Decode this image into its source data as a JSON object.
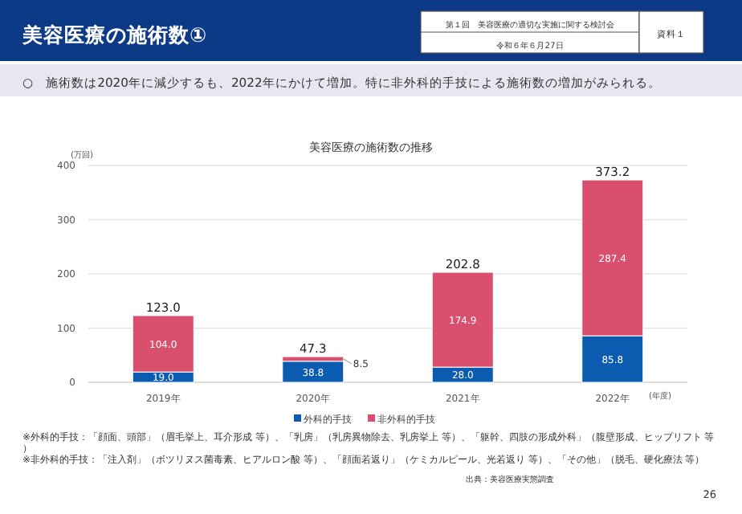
{
  "chart_data": {
    "type": "bar",
    "title": "美容医療の施術数の推移",
    "subtitle": "○　施術数は2020年に減少するも、2022年にかけて増加。特に非外科的手技による施術数の増加がみられる。",
    "ylabel": "(万回)",
    "xlabel": "(年度)",
    "categories": [
      "2019年",
      "2020年",
      "2021年",
      "2022年"
    ],
    "stacked": true,
    "series": [
      {
        "name": "外科的手技",
        "color": "#0b5cb0",
        "values": [
          19.0,
          38.8,
          28.0,
          85.8
        ],
        "value_labels": [
          "19.0",
          "38.8",
          "28.0",
          "85.8"
        ]
      },
      {
        "name": "非外科的手技",
        "color": "#d9506e",
        "values": [
          104.0,
          8.5,
          174.9,
          287.4
        ],
        "value_labels": [
          "104.0",
          "8.5",
          "174.9",
          "287.4"
        ]
      }
    ],
    "totals": [
      "123.0",
      "47.3",
      "202.8",
      "373.2"
    ],
    "ylim": [
      0,
      400
    ],
    "yticks": [
      0,
      100,
      200,
      300,
      400
    ],
    "grid": "y",
    "legend": "bottom",
    "annotations": [
      "美容医療の施術数①",
      "第１回　美容医療の適切な実施に関する検討会",
      "令和６年６月27日",
      "資料１",
      "※外科的手技：「顔面、頭部」（眉毛挙上、耳介形成 等）、「乳房」（乳房異物除去、乳房挙上 等）、「躯幹、四肢の形成外科」（腹壁形成、ヒップリフト 等）",
      "※非外科的手技：「注入剤」（ボツリヌス菌毒素、ヒアルロン酸 等）、「顔面若返り」（ケミカルピール、光若返り 等）、「その他」（脱毛、硬化療法 等）",
      "出典：美容医療実態調査",
      "26"
    ]
  }
}
